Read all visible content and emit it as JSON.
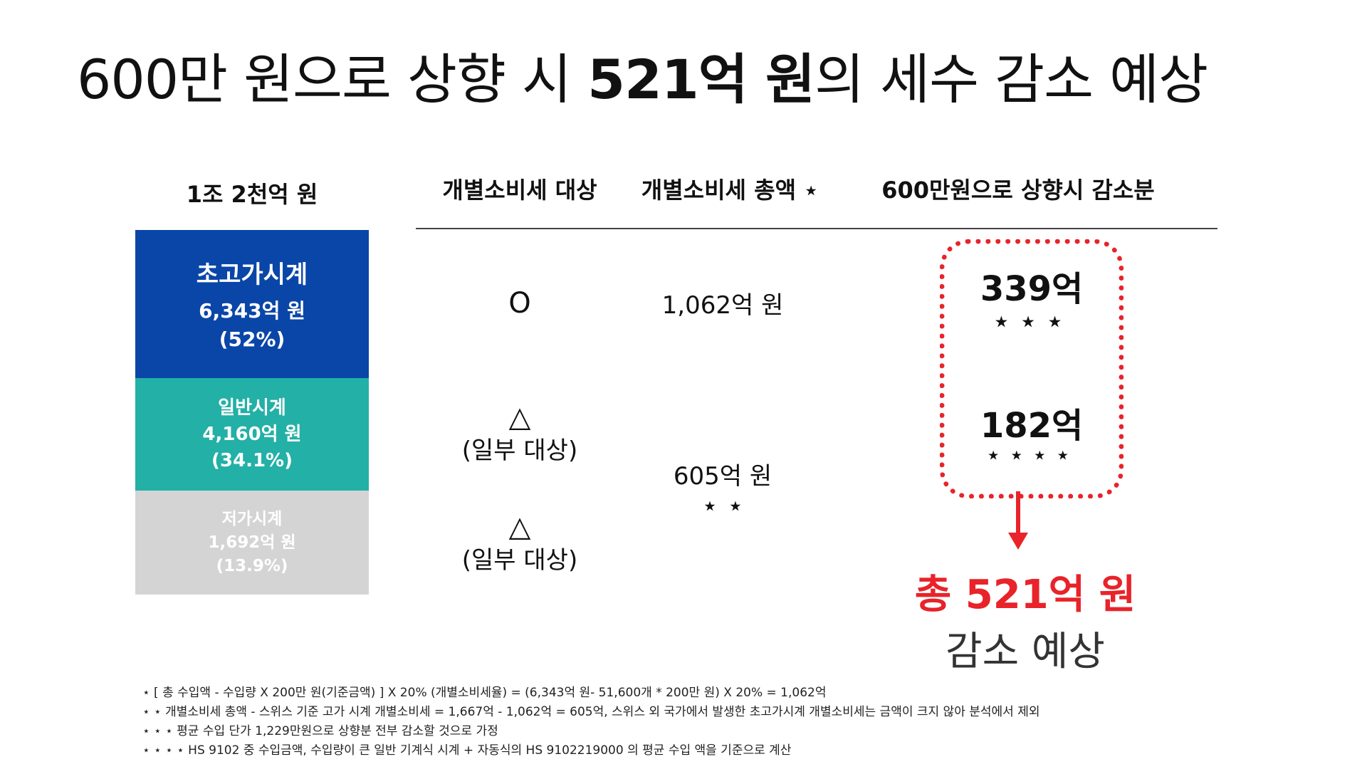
{
  "title": {
    "prefix": "600만 원으로 상향 시 ",
    "highlight": "521억 원",
    "suffix": "의 세수 감소 예상"
  },
  "stack": {
    "header": "1조 2천억 원",
    "segments": [
      {
        "name": "초고가시계",
        "value": "6,343억 원",
        "pct": "(52%)",
        "color": "#0a46a8"
      },
      {
        "name": "일반시계",
        "value": "4,160억 원",
        "pct": "(34.1%)",
        "color": "#23b0a6"
      },
      {
        "name": "저가시계",
        "value": "1,692억 원",
        "pct": "(13.9%)",
        "color": "#d4d4d4"
      }
    ]
  },
  "table": {
    "headers": [
      "개별소비세 대상",
      "개별소비세 총액 ⋆",
      "600만원으로 상향시 감소분"
    ],
    "rows": [
      {
        "target_symbol": "O",
        "target_note": ""
      },
      {
        "target_symbol": "△",
        "target_note": "(일부 대상)"
      },
      {
        "target_symbol": "△",
        "target_note": "(일부 대상)"
      }
    ],
    "total_1": "1,062억 원",
    "total_2": "605억 원",
    "total_2_mark": "⋆ ⋆",
    "reduction_1": "339억",
    "reduction_1_mark": "⋆⋆⋆",
    "reduction_2": "182억",
    "reduction_2_mark": "⋆⋆⋆⋆"
  },
  "result": {
    "total": "총 521억 원",
    "label": "감소 예상"
  },
  "footnotes": [
    "⋆ [ 총 수입액 - 수입량 X 200만 원(기준금액) ] X 20% (개별소비세율) = (6,343억 원- 51,600개 * 200만 원) X 20% = 1,062억",
    "⋆ ⋆ 개별소비세 총액 - 스위스 기준 고가 시계 개별소비세 = 1,667억 - 1,062억 = 605억, 스위스 외 국가에서 발생한 초고가시계 개별소비세는 금액이 크지 않아 분석에서 제외",
    "⋆ ⋆ ⋆ 평균 수입 단가 1,229만원으로 상향분 전부 감소할 것으로 가정",
    "⋆ ⋆ ⋆ ⋆ HS 9102 중 수입금액, 수입량이 큰 일반 기계식 시계 + 자동식의 HS 9102219000 의 평균 수입 액을 기준으로 계산"
  ],
  "colors": {
    "accent_red": "#e8232a",
    "navy": "#0a46a8",
    "teal": "#23b0a6",
    "gray": "#d4d4d4"
  }
}
